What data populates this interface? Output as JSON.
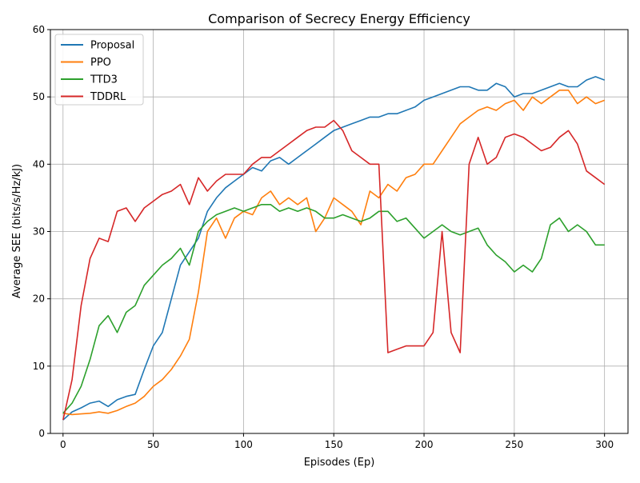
{
  "chart_data": {
    "type": "line",
    "title": "Comparison of Secrecy Energy Efficiency",
    "xlabel": "Episodes (Ep)",
    "ylabel": "Average SEE (bits/s/Hz/kJ)",
    "xlim": [
      -7,
      313
    ],
    "ylim": [
      0,
      60
    ],
    "xticks": [
      0,
      50,
      100,
      150,
      200,
      250,
      300
    ],
    "yticks": [
      0,
      10,
      20,
      30,
      40,
      50,
      60
    ],
    "grid": true,
    "legend_position": "top-left",
    "x": [
      0,
      5,
      10,
      15,
      20,
      25,
      30,
      35,
      40,
      45,
      50,
      55,
      60,
      65,
      70,
      75,
      80,
      85,
      90,
      95,
      100,
      105,
      110,
      115,
      120,
      125,
      130,
      135,
      140,
      145,
      150,
      155,
      160,
      165,
      170,
      175,
      180,
      185,
      190,
      195,
      200,
      205,
      210,
      215,
      220,
      225,
      230,
      235,
      240,
      245,
      250,
      255,
      260,
      265,
      270,
      275,
      280,
      285,
      290,
      295,
      300
    ],
    "series": [
      {
        "name": "Proposal",
        "color": "#1f77b4",
        "values": [
          2.0,
          3.2,
          3.8,
          4.5,
          4.8,
          4.0,
          5.0,
          5.5,
          5.8,
          9.5,
          13.0,
          15.0,
          20.0,
          25.0,
          27.0,
          29.0,
          33.0,
          35.0,
          36.5,
          37.5,
          38.5,
          39.5,
          39.0,
          40.5,
          41.0,
          40.0,
          41.0,
          42.0,
          43.0,
          44.0,
          45.0,
          45.5,
          46.0,
          46.5,
          47.0,
          47.0,
          47.5,
          47.5,
          48.0,
          48.5,
          49.5,
          50.0,
          50.5,
          51.0,
          51.5,
          51.5,
          51.0,
          51.0,
          52.0,
          51.5,
          50.0,
          50.5,
          50.5,
          51.0,
          51.5,
          52.0,
          51.5,
          51.5,
          52.5,
          53.0,
          52.5
        ]
      },
      {
        "name": "PPO",
        "color": "#ff7f0e",
        "values": [
          3.0,
          2.8,
          2.9,
          3.0,
          3.2,
          3.0,
          3.4,
          4.0,
          4.5,
          5.5,
          7.0,
          8.0,
          9.5,
          11.5,
          14.0,
          21.0,
          30.0,
          32.0,
          29.0,
          32.0,
          33.0,
          32.5,
          35.0,
          36.0,
          34.0,
          35.0,
          34.0,
          35.0,
          30.0,
          32.0,
          35.0,
          34.0,
          33.0,
          31.0,
          36.0,
          35.0,
          37.0,
          36.0,
          38.0,
          38.5,
          40.0,
          40.0,
          42.0,
          44.0,
          46.0,
          47.0,
          48.0,
          48.5,
          48.0,
          49.0,
          49.5,
          48.0,
          50.0,
          49.0,
          50.0,
          51.0,
          51.0,
          49.0,
          50.0,
          49.0,
          49.5
        ]
      },
      {
        "name": "TTD3",
        "color": "#2ca02c",
        "values": [
          3.0,
          4.5,
          7.0,
          11.0,
          16.0,
          17.5,
          15.0,
          18.0,
          19.0,
          22.0,
          23.5,
          25.0,
          26.0,
          27.5,
          25.0,
          30.0,
          31.5,
          32.5,
          33.0,
          33.5,
          33.0,
          33.5,
          34.0,
          34.0,
          33.0,
          33.5,
          33.0,
          33.5,
          33.0,
          32.0,
          32.0,
          32.5,
          32.0,
          31.5,
          32.0,
          33.0,
          33.0,
          31.5,
          32.0,
          30.5,
          29.0,
          30.0,
          31.0,
          30.0,
          29.5,
          30.0,
          30.5,
          28.0,
          26.5,
          25.5,
          24.0,
          25.0,
          24.0,
          26.0,
          31.0,
          32.0,
          30.0,
          31.0,
          30.0,
          28.0,
          28.0
        ]
      },
      {
        "name": "TDDRL",
        "color": "#d62728",
        "values": [
          2.0,
          8.0,
          19.0,
          26.0,
          29.0,
          28.5,
          33.0,
          33.5,
          31.5,
          33.5,
          34.5,
          35.5,
          36.0,
          37.0,
          34.0,
          38.0,
          36.0,
          37.5,
          38.5,
          38.5,
          38.5,
          40.0,
          41.0,
          41.0,
          42.0,
          43.0,
          44.0,
          45.0,
          45.5,
          45.5,
          46.5,
          45.0,
          42.0,
          41.0,
          40.0,
          40.0,
          12.0,
          12.5,
          13.0,
          13.0,
          13.0,
          15.0,
          30.0,
          15.0,
          12.0,
          40.0,
          44.0,
          40.0,
          41.0,
          44.0,
          44.5,
          44.0,
          43.0,
          42.0,
          42.5,
          44.0,
          45.0,
          43.0,
          39.0,
          38.0,
          37.0
        ]
      }
    ]
  }
}
